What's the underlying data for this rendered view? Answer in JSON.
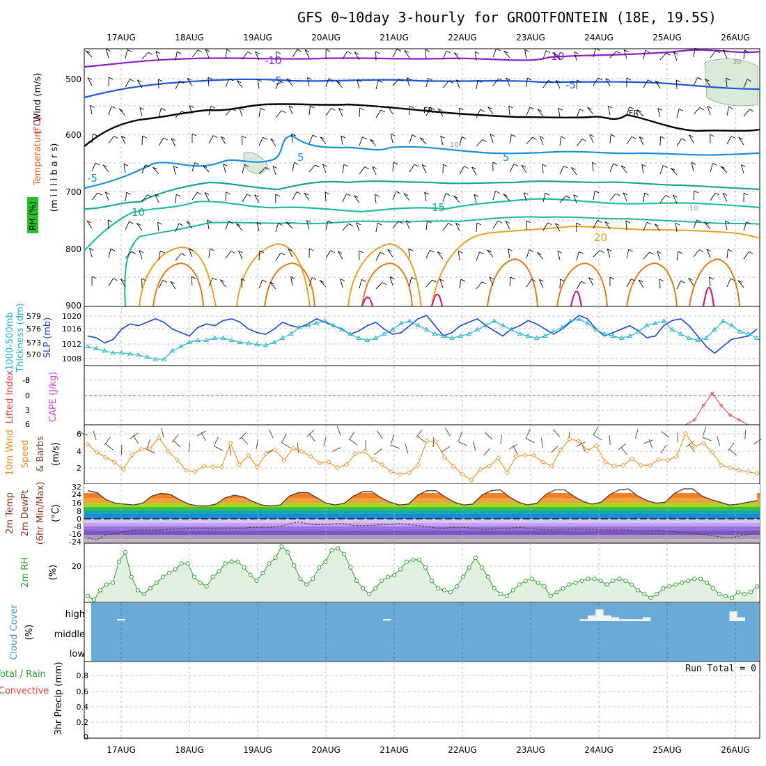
{
  "title": "GFS 0~10day 3-hourly for GROOTFONTEIN (18E, 19.5S)",
  "dates": [
    "17AUG",
    "18AUG",
    "19AUG",
    "20AUG",
    "21AUG",
    "22AUG",
    "23AUG",
    "24AUG",
    "25AUG",
    "26AUG"
  ],
  "colors": {
    "grid": "#a0a0a0",
    "slp": "#1f3fd0",
    "thickness": "#22b5c8",
    "wind_speed": "#f08c1e",
    "rh": "#2d9a2d",
    "rh_fill": "#e2f0e2",
    "cloud": "#6aaad6",
    "cape": "#cc4488",
    "lifted": "#e03a3a"
  },
  "panels": {
    "upper": {
      "label_temp": "Temperature",
      "label_unit": "(°C)",
      "label_wind": "Wind (m/s)",
      "label_rh": "RH (%)",
      "label_mb": "(m i l l i b a r s)",
      "y_ticks": [
        "500",
        "600",
        "700",
        "800",
        "900"
      ],
      "contour_labels": [
        "-10",
        "-10",
        "-5",
        "-5",
        "FR",
        "FR",
        "5",
        "5",
        "-5",
        "10",
        "15",
        "20",
        "10",
        "10",
        "30"
      ]
    },
    "slp": {
      "label_thick": "1000-500mb",
      "label_thick2": "Thickness (dm)",
      "label_slp": "SLP (mb)",
      "left_ticks": [
        "579",
        "576",
        "573",
        "570"
      ],
      "right_ticks": [
        "1020",
        "1016",
        "1012",
        "1008"
      ]
    },
    "cape": {
      "label_li": "Lifted Index",
      "label_cape": "CAPE (J/kg)",
      "ticks": [
        "-6",
        "-3",
        "0",
        "3",
        "6"
      ]
    },
    "wind10": {
      "label1": "10m Wind",
      "label2": "Speed",
      "label3": "& Barbs",
      "unit": "(m/s)",
      "ticks": [
        "6",
        "4",
        "2"
      ]
    },
    "temp2m": {
      "label1": "2m Temp",
      "label2": "2m DewPt",
      "label3": "(6hr Min/Max)",
      "unit": "(°C)",
      "ticks": [
        "32",
        "24",
        "16",
        "8",
        "0",
        "-8",
        "-16",
        "-24"
      ]
    },
    "rh2m": {
      "label": "2m RH",
      "unit": "(%)",
      "ticks": [
        "20"
      ]
    },
    "cloud": {
      "label": "Cloud Cover",
      "unit": "(%)",
      "levels": [
        "high",
        "middle",
        "low"
      ]
    },
    "precip": {
      "label_total": "Total / Rain",
      "label_conv": "Convective",
      "label_3hr": "3hr Precip (mm)",
      "ticks": [
        "0.8",
        "0.6",
        "0.4",
        "0.2",
        "0"
      ],
      "run_total": "Run Total = 0"
    }
  },
  "chart_data": [
    {
      "type": "line",
      "title": "SLP (mb) / 1000-500mb Thickness (dm)",
      "x_unit": "3-hourly steps from 16AUG 12Z",
      "series": [
        {
          "name": "SLP (mb)",
          "axis": "right",
          "ylim": [
            1006,
            1022
          ],
          "values": [
            1014,
            1013.5,
            1012,
            1013,
            1016,
            1017.5,
            1017,
            1018,
            1019,
            1018,
            1016,
            1015,
            1014,
            1016.5,
            1017.5,
            1017,
            1018.5,
            1019,
            1018,
            1016,
            1015,
            1014.5,
            1016,
            1018,
            1017,
            1016.5,
            1017.5,
            1019,
            1018,
            1017,
            1016,
            1014.5,
            1015.5,
            1017,
            1018,
            1016,
            1014.5,
            1015,
            1017,
            1019,
            1020,
            1017,
            1014,
            1015,
            1017,
            1018,
            1019,
            1017,
            1015.5,
            1014,
            1016,
            1017,
            1018.5,
            1017.5,
            1016,
            1014.5,
            1016,
            1018,
            1020,
            1019,
            1016,
            1014,
            1015,
            1016,
            1017,
            1015.5,
            1013.5,
            1014,
            1017,
            1018.5,
            1019,
            1017,
            1014,
            1011,
            1009,
            1011,
            1013,
            1013.5,
            1014,
            1016
          ]
        },
        {
          "name": "Thickness (dm)",
          "axis": "left",
          "ylim": [
            568,
            581
          ],
          "values": [
            572,
            571.5,
            571,
            570.5,
            570.5,
            570.3,
            570,
            569.5,
            569,
            569,
            571,
            572,
            573,
            573.5,
            573.5,
            574,
            574,
            573.5,
            573,
            572.8,
            572.5,
            572.3,
            573,
            574,
            575,
            576.5,
            577,
            577.5,
            578,
            577,
            576,
            575,
            574,
            573.5,
            574,
            575,
            576,
            577.5,
            578,
            577,
            576,
            575,
            574.5,
            574,
            574.5,
            575,
            576,
            577,
            578,
            577,
            576,
            575,
            574.5,
            574,
            574.5,
            575.5,
            576.5,
            578,
            578.5,
            577.5,
            576,
            575,
            574.5,
            574,
            574.5,
            575.5,
            577,
            577.5,
            578,
            576,
            575,
            574,
            573.5,
            574,
            576,
            578,
            577,
            575.5,
            575,
            574
          ]
        }
      ]
    },
    {
      "type": "line",
      "title": "10m Wind Speed (m/s)",
      "ylim": [
        0,
        7
      ],
      "series": [
        {
          "name": "Speed",
          "values": [
            4.8,
            3.8,
            3.2,
            2.6,
            1.7,
            3.5,
            4.2,
            4.3,
            5.6,
            3.9,
            2.9,
            1.6,
            1.4,
            2.1,
            2.0,
            2.0,
            4.9,
            2.3,
            3.4,
            2.0,
            3.6,
            4.1,
            2.8,
            4.3,
            3.9,
            3.3,
            2.5,
            2.6,
            1.9,
            2.3,
            3.6,
            3.9,
            2.9,
            2.3,
            1.4,
            1.1,
            1.3,
            2.2,
            5.2,
            5.1,
            3.2,
            2.1,
            1.1,
            0.4,
            1.7,
            2.1,
            3.1,
            1.3,
            3.3,
            3.4,
            3.4,
            2.6,
            2.1,
            4.1,
            5.4,
            5.2,
            4.0,
            4.6,
            2.6,
            2.1,
            2.2,
            3.0,
            2.2,
            2.2,
            2.9,
            2.8,
            3.3,
            6.1,
            4.5,
            4.9,
            3.8,
            2.2,
            1.9,
            1.6,
            1.4,
            1.2
          ]
        }
      ]
    },
    {
      "type": "line",
      "title": "Lifted Index / CAPE",
      "ylim": [
        -6,
        6
      ],
      "series": [
        {
          "name": "Lifted Index",
          "values": [
            6,
            6,
            6,
            6,
            6,
            6,
            6,
            6,
            6,
            6,
            6,
            6,
            6,
            6,
            6,
            6,
            6,
            6,
            6,
            6,
            6,
            6,
            6,
            6,
            6,
            6,
            6,
            6,
            6,
            6,
            6,
            6,
            6,
            6,
            6,
            6,
            6,
            6,
            6,
            6,
            6,
            6,
            6,
            6,
            6,
            6,
            6,
            6,
            6,
            6,
            6,
            6,
            6,
            6,
            6,
            6,
            6,
            6,
            6,
            6,
            6,
            6,
            6,
            6,
            6,
            6,
            6,
            6,
            5,
            2,
            -0.5,
            2,
            4,
            5,
            6,
            6
          ]
        }
      ]
    },
    {
      "type": "area",
      "title": "2m RH (%)",
      "ylim": [
        0,
        30
      ],
      "series": [
        {
          "name": "2m RH",
          "values": [
            3,
            1,
            6,
            9,
            10,
            21,
            26,
            13,
            6,
            4,
            7,
            10,
            13,
            15,
            17,
            20,
            20,
            13,
            10,
            8,
            13,
            16,
            20,
            21,
            21,
            18,
            14,
            11,
            15,
            20,
            23,
            29,
            26,
            19,
            12,
            9,
            12,
            18,
            21,
            27,
            28,
            25,
            18,
            11,
            7,
            4,
            7,
            11,
            13,
            14,
            17,
            21,
            22,
            22,
            18,
            11,
            7,
            6,
            5,
            8,
            13,
            18,
            23,
            18,
            13,
            7,
            4,
            3,
            6,
            9,
            11,
            12,
            10,
            8,
            3,
            5,
            7,
            9,
            10,
            11,
            12,
            12,
            11,
            9,
            11,
            12,
            11,
            9,
            6,
            4,
            2,
            4,
            7,
            8,
            9,
            10,
            11,
            12,
            12,
            10,
            7,
            4,
            3,
            2,
            5,
            4,
            5,
            8
          ]
        }
      ]
    },
    {
      "type": "line",
      "title": "2m Temp / 2m DewPt (°C)",
      "ylim": [
        -28,
        36
      ],
      "series": [
        {
          "name": "2m Temp",
          "values": [
            30,
            28,
            20,
            16,
            15,
            14,
            16,
            24,
            27,
            26,
            20,
            15,
            13,
            13,
            15,
            22,
            25,
            23,
            18,
            14,
            13,
            14,
            24,
            28,
            28,
            22,
            16,
            14,
            16,
            24,
            29,
            29,
            22,
            17,
            14,
            15,
            25,
            30,
            30,
            23,
            17,
            14,
            15,
            25,
            30,
            31,
            23,
            17,
            14,
            16,
            26,
            31,
            31,
            24,
            18,
            15,
            17,
            26,
            31,
            32,
            24,
            19,
            16,
            17,
            27,
            32,
            32,
            24,
            20,
            17,
            14,
            15,
            17,
            19
          ]
        },
        {
          "name": "2m DewPt",
          "values": [
            -23,
            -25,
            -19,
            -18,
            -16,
            -14,
            -14,
            -14,
            -14,
            -13,
            -13,
            -12,
            -12,
            -12,
            -13,
            -12,
            -12,
            -12,
            -11,
            -11,
            -11,
            -10,
            -7,
            -5,
            -7,
            -8,
            -8,
            -7,
            -7,
            -9,
            -9,
            -9,
            -8,
            -8,
            -7,
            -8,
            -9,
            -10,
            -12,
            -12,
            -11,
            -11,
            -12,
            -13,
            -13,
            -12,
            -12,
            -11,
            -12,
            -13,
            -14,
            -14,
            -13,
            -13,
            -13,
            -13,
            -14,
            -14,
            -14,
            -14,
            -15,
            -15,
            -14,
            -15,
            -16,
            -17,
            -18,
            -19,
            -20,
            -22,
            -23,
            -21,
            -19,
            -17
          ]
        }
      ]
    },
    {
      "type": "bar",
      "title": "Cloud Cover (%)",
      "series": [
        {
          "name": "high",
          "values": [
            0,
            0,
            0,
            0,
            0,
            0,
            0,
            0,
            0,
            0,
            0,
            0,
            0,
            0,
            0,
            0,
            0,
            0,
            0,
            0,
            0,
            0,
            0,
            0,
            0,
            0,
            0,
            0,
            0,
            0,
            0,
            0,
            0,
            0,
            0,
            0,
            0,
            0,
            0,
            0,
            0,
            0,
            0,
            0,
            0,
            0,
            0,
            0,
            0,
            0,
            0,
            0,
            0,
            0,
            0,
            0,
            0,
            0,
            0,
            0,
            0,
            0,
            0,
            10,
            30,
            60,
            30,
            20,
            10,
            10,
            10,
            20,
            0,
            0,
            0,
            0,
            0,
            0,
            0,
            0,
            0,
            0,
            50,
            20,
            0,
            0
          ]
        }
      ]
    },
    {
      "type": "bar",
      "title": "3hr Precip (mm)",
      "ylim": [
        0,
        1
      ],
      "series": [
        {
          "name": "Total / Rain",
          "values": [
            0,
            0,
            0,
            0,
            0,
            0,
            0,
            0,
            0,
            0
          ]
        }
      ]
    }
  ]
}
